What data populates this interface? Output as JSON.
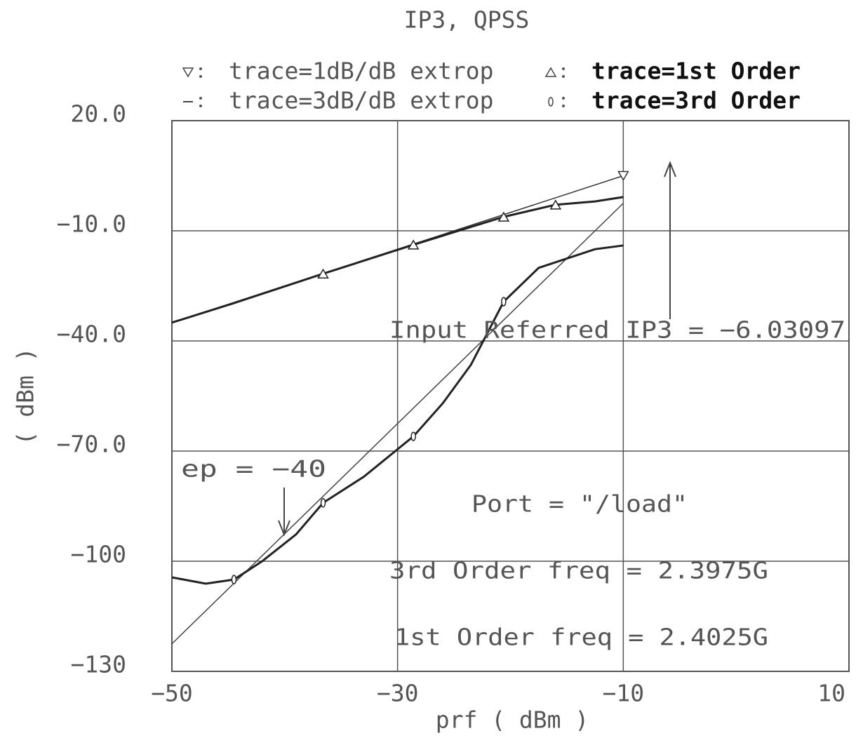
{
  "chart_data": {
    "type": "line",
    "title": "IP3, QPSS",
    "x_label": "prf ( dBm )",
    "y_label": "( dBm )",
    "xlim": [
      -50,
      10
    ],
    "ylim": [
      -130,
      20
    ],
    "xticks": [
      {
        "value": -50,
        "label": "−50"
      },
      {
        "value": -30,
        "label": "−30"
      },
      {
        "value": -10,
        "label": "−10"
      },
      {
        "value": 10,
        "label": "10"
      }
    ],
    "yticks": [
      {
        "value": 20,
        "label": "20.0"
      },
      {
        "value": -10,
        "label": "−10.0"
      },
      {
        "value": -40,
        "label": "−40.0"
      },
      {
        "value": -70,
        "label": "−70.0"
      },
      {
        "value": -100,
        "label": "−100"
      },
      {
        "value": -130,
        "label": "−130"
      }
    ],
    "grid": true,
    "series": [
      {
        "name": "trace=1dB/dB extrop",
        "color": "#333",
        "marker": "v",
        "x": [
          -50,
          -10
        ],
        "values": [
          -35,
          5
        ]
      },
      {
        "name": "trace=1st Order",
        "color": "#222",
        "marker": "^",
        "x": [
          -50,
          -44.5,
          -36.6,
          -28.6,
          -20.6,
          -16,
          -12.5,
          -10
        ],
        "values": [
          -35,
          -29.7,
          -21.7,
          -13.8,
          -6.2,
          -2.9,
          -2.0,
          -0.8
        ]
      },
      {
        "name": "trace=3dB/dB extrop",
        "color": "#444",
        "marker": "-",
        "x": [
          -50,
          -10
        ],
        "values": [
          -122.5,
          -2.5
        ]
      },
      {
        "name": "trace=3rd Order",
        "color": "#222",
        "marker": "o",
        "x": [
          -50,
          -47,
          -44.5,
          -42,
          -39,
          -36.6,
          -33,
          -28.6,
          -26,
          -23.5,
          -20.6,
          -17.5,
          -12.5,
          -10
        ],
        "values": [
          -104.4,
          -106.1,
          -105,
          -100,
          -92.7,
          -84.1,
          -77,
          -66,
          -57,
          -46.5,
          -29.3,
          -20.1,
          -15,
          -14
        ]
      }
    ],
    "annotations": [
      "Input Referred IP3 = −6.03097",
      "Port = \"/load\"",
      "3rd Order freq = 2.3975G",
      "1st Order freq = 2.4025G",
      "ep = −40"
    ]
  }
}
